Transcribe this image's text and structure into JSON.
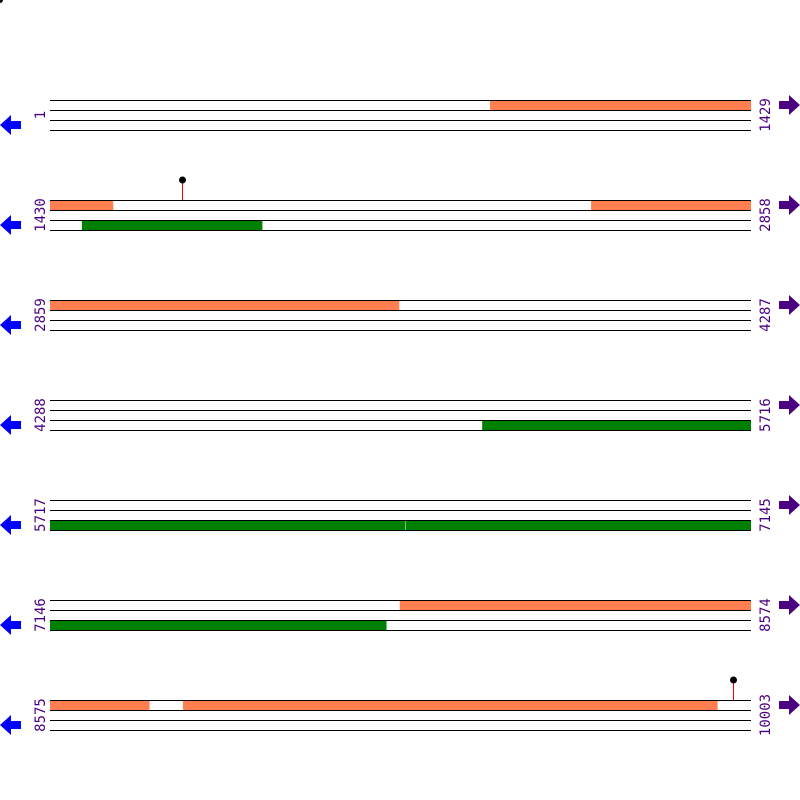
{
  "colors": {
    "track_line": "#000000",
    "top_feature": "#ff7f50",
    "bottom_feature": "#008000",
    "marker_stem": "#ff0000",
    "marker_head": "#000000",
    "left_arrow": "#0000ff",
    "right_arrow": "#4b0082",
    "label": "#4b0082"
  },
  "icons": {
    "left": "arrow-left-icon",
    "right": "arrow-right-icon"
  },
  "rows": [
    {
      "start": 1,
      "end": 1429,
      "start_label": "1",
      "end_label": "1429",
      "features": [
        {
          "track": "top",
          "from": 898,
          "to": 1429
        }
      ],
      "markers": []
    },
    {
      "start": 1430,
      "end": 2858,
      "start_label": "1430",
      "end_label": "2858",
      "features": [
        {
          "track": "top",
          "from": 1430,
          "to": 1558
        },
        {
          "track": "top",
          "from": 2533,
          "to": 2858
        },
        {
          "track": "bottom",
          "from": 1495,
          "to": 1862
        }
      ],
      "markers": [
        1699
      ]
    },
    {
      "start": 2859,
      "end": 4287,
      "start_label": "2859",
      "end_label": "4287",
      "features": [
        {
          "track": "top",
          "from": 2859,
          "to": 3570
        }
      ],
      "markers": []
    },
    {
      "start": 4288,
      "end": 5716,
      "start_label": "4288",
      "end_label": "5716",
      "features": [
        {
          "track": "bottom",
          "from": 5169,
          "to": 5716
        }
      ],
      "markers": []
    },
    {
      "start": 5717,
      "end": 7145,
      "start_label": "5717",
      "end_label": "7145",
      "features": [
        {
          "track": "bottom",
          "from": 5717,
          "to": 6440
        },
        {
          "track": "bottom",
          "from": 6442,
          "to": 7145
        }
      ],
      "markers": []
    },
    {
      "start": 7146,
      "end": 8574,
      "start_label": "7146",
      "end_label": "8574",
      "features": [
        {
          "track": "top",
          "from": 7859,
          "to": 8574
        },
        {
          "track": "bottom",
          "from": 7146,
          "to": 7831
        }
      ],
      "markers": []
    },
    {
      "start": 8575,
      "end": 10003,
      "start_label": "8575",
      "end_label": "10003",
      "features": [
        {
          "track": "top",
          "from": 8575,
          "to": 8777
        },
        {
          "track": "top",
          "from": 8846,
          "to": 9935
        }
      ],
      "markers": [
        9967
      ]
    }
  ]
}
